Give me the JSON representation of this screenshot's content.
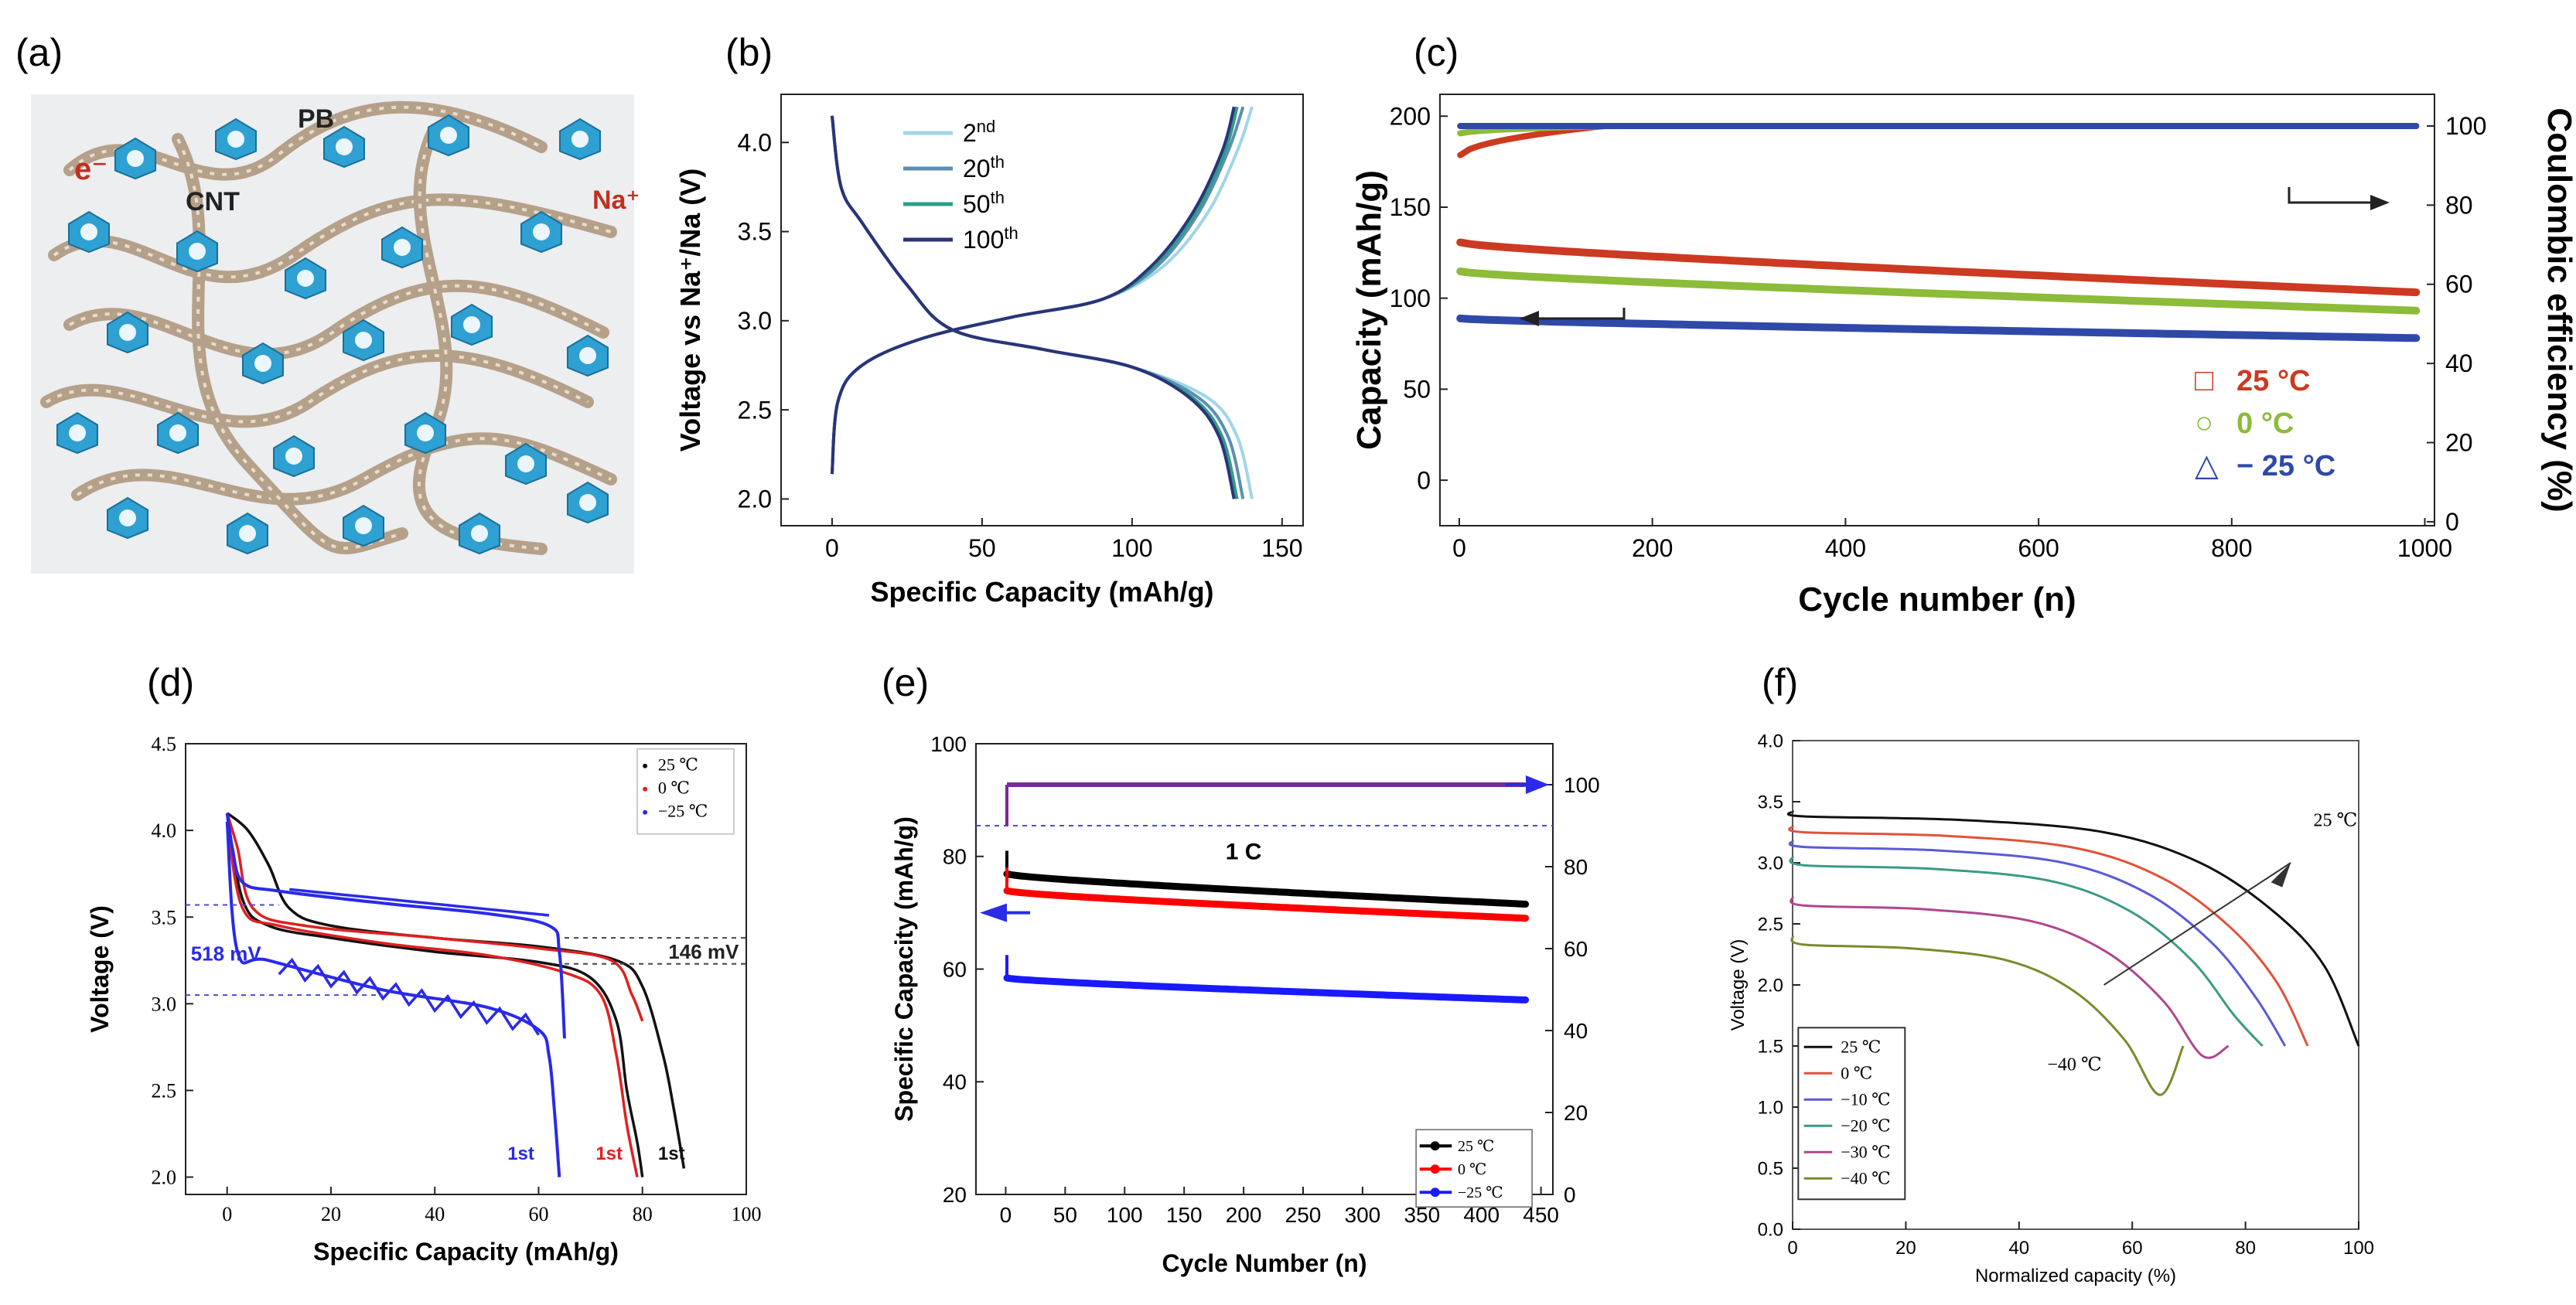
{
  "panels": [
    {
      "label": "(a)",
      "schematic": {
        "labels": {
          "pb": "PB",
          "cnt": "CNT",
          "electron": "e⁻",
          "sodium": "Na⁺"
        }
      }
    },
    {
      "label": "(b)"
    },
    {
      "label": "(c)"
    },
    {
      "label": "(d)"
    },
    {
      "label": "(e)"
    },
    {
      "label": "(f)"
    }
  ],
  "colors": {
    "cube": "#2fa0d2",
    "cnt": "#b5a08a",
    "c25": "#cc3a22",
    "c0": "#8dbb3a",
    "cm25": "#2f49a8"
  },
  "chart_data": [
    {
      "panel": "b",
      "type": "line",
      "xlabel": "Specific Capacity (mAh/g)",
      "ylabel": "Voltage vs Na⁺/Na (V)",
      "xlim": [
        -17,
        157
      ],
      "ylim": [
        1.85,
        4.27
      ],
      "xticks": [
        0,
        50,
        100,
        150
      ],
      "yticks": [
        2.0,
        2.5,
        3.0,
        3.5,
        4.0
      ],
      "series": [
        {
          "name": "2nd",
          "sup": "nd",
          "base": "2",
          "color": "#9fd6e8",
          "xmax": 140,
          "charge": [
            [
              0,
              2.14
            ],
            [
              2,
              2.55
            ],
            [
              10,
              2.75
            ],
            [
              30,
              2.9
            ],
            [
              60,
              3.02
            ],
            [
              90,
              3.12
            ],
            [
              110,
              3.3
            ],
            [
              125,
              3.6
            ],
            [
              135,
              3.95
            ],
            [
              140,
              4.2
            ]
          ],
          "discharge": [
            [
              0,
              4.15
            ],
            [
              3,
              3.75
            ],
            [
              10,
              3.55
            ],
            [
              25,
              3.2
            ],
            [
              40,
              2.95
            ],
            [
              70,
              2.84
            ],
            [
              100,
              2.74
            ],
            [
              125,
              2.57
            ],
            [
              135,
              2.35
            ],
            [
              140,
              2.0
            ]
          ]
        },
        {
          "name": "20th",
          "sup": "th",
          "base": "20",
          "color": "#5b8fb3",
          "xmax": 137,
          "charge": [
            [
              0,
              2.14
            ],
            [
              2,
              2.55
            ],
            [
              10,
              2.75
            ],
            [
              30,
              2.9
            ],
            [
              60,
              3.02
            ],
            [
              90,
              3.12
            ],
            [
              108,
              3.3
            ],
            [
              122,
              3.6
            ],
            [
              132,
              3.95
            ],
            [
              137,
              4.2
            ]
          ],
          "discharge": [
            [
              0,
              4.15
            ],
            [
              3,
              3.75
            ],
            [
              10,
              3.55
            ],
            [
              25,
              3.2
            ],
            [
              40,
              2.95
            ],
            [
              70,
              2.84
            ],
            [
              100,
              2.74
            ],
            [
              122,
              2.57
            ],
            [
              132,
              2.35
            ],
            [
              137,
              2.0
            ]
          ]
        },
        {
          "name": "50th",
          "sup": "th",
          "base": "50",
          "color": "#2e9c8a",
          "xmax": 135,
          "charge": [
            [
              0,
              2.14
            ],
            [
              2,
              2.55
            ],
            [
              10,
              2.75
            ],
            [
              30,
              2.9
            ],
            [
              60,
              3.02
            ],
            [
              90,
              3.12
            ],
            [
              107,
              3.3
            ],
            [
              121,
              3.6
            ],
            [
              131,
              3.95
            ],
            [
              135,
              4.2
            ]
          ],
          "discharge": [
            [
              0,
              4.15
            ],
            [
              3,
              3.75
            ],
            [
              10,
              3.55
            ],
            [
              25,
              3.2
            ],
            [
              40,
              2.95
            ],
            [
              70,
              2.84
            ],
            [
              100,
              2.74
            ],
            [
              120,
              2.57
            ],
            [
              130,
              2.35
            ],
            [
              135,
              2.0
            ]
          ]
        },
        {
          "name": "100th",
          "sup": "th",
          "base": "100",
          "color": "#2c3378",
          "xmax": 134,
          "charge": [
            [
              0,
              2.14
            ],
            [
              2,
              2.55
            ],
            [
              10,
              2.75
            ],
            [
              30,
              2.9
            ],
            [
              60,
              3.02
            ],
            [
              90,
              3.12
            ],
            [
              106,
              3.3
            ],
            [
              120,
              3.6
            ],
            [
              130,
              3.95
            ],
            [
              134,
              4.2
            ]
          ],
          "discharge": [
            [
              0,
              4.15
            ],
            [
              3,
              3.75
            ],
            [
              10,
              3.55
            ],
            [
              25,
              3.2
            ],
            [
              40,
              2.95
            ],
            [
              70,
              2.84
            ],
            [
              100,
              2.74
            ],
            [
              119,
              2.57
            ],
            [
              129,
              2.35
            ],
            [
              134,
              2.0
            ]
          ]
        }
      ]
    },
    {
      "panel": "c",
      "type": "scatter",
      "xlabel": "Cycle number (n)",
      "ylabel": "Capacity (mAh/g)",
      "y2label": "Coulombic efficiency (%)",
      "xlim": [
        -20,
        1010
      ],
      "ylim": [
        -25,
        212
      ],
      "y2lim": [
        -1,
        108
      ],
      "xticks": [
        0,
        200,
        400,
        600,
        800,
        1000
      ],
      "yticks": [
        0,
        50,
        100,
        150,
        200
      ],
      "y2ticks": [
        0,
        20,
        40,
        60,
        80,
        100
      ],
      "legend": [
        {
          "symbol": "□",
          "label": "25 °C",
          "color": "#cc3a22"
        },
        {
          "symbol": "○",
          "label": "0 °C",
          "color": "#8dbb3a"
        },
        {
          "symbol": "△",
          "label": "− 25 °C",
          "color": "#2f49a8"
        }
      ],
      "capacity": [
        {
          "name": "25 °C",
          "color": "#cc3a22",
          "start": 131,
          "end": 103
        },
        {
          "name": "0 °C",
          "color": "#8dbb3a",
          "start": 115,
          "end": 93
        },
        {
          "name": "-25 °C",
          "color": "#2f49a8",
          "start": 89,
          "end": 78
        }
      ],
      "efficiency": [
        {
          "name": "25 °C",
          "color": "#cc3a22",
          "start": 92,
          "end": 100
        },
        {
          "name": "0 °C",
          "color": "#8dbb3a",
          "start": 98,
          "end": 100
        },
        {
          "name": "-25 °C",
          "color": "#2f49a8",
          "start": 100,
          "end": 100
        }
      ]
    },
    {
      "panel": "d",
      "type": "line",
      "xlabel": "Specific Capacity (mAh/g)",
      "ylabel": "Voltage (V)",
      "xlim": [
        -8,
        100
      ],
      "ylim": [
        1.9,
        4.5
      ],
      "xticks": [
        0,
        20,
        40,
        60,
        80,
        100
      ],
      "yticks": [
        2.0,
        2.5,
        3.0,
        3.5,
        4.0,
        4.5
      ],
      "legend": [
        {
          "label": "25 ℃",
          "color": "#111111"
        },
        {
          "label": "0 ℃",
          "color": "#e02020"
        },
        {
          "label": "−25 ℃",
          "color": "#2a2ae8"
        }
      ],
      "annotations": {
        "left_gap": "518 mV",
        "right_gap": "146 mV",
        "first": "1st"
      },
      "series": [
        {
          "name": "25 ℃",
          "color": "#111111",
          "points": [
            [
              0,
              4.1
            ],
            [
              4,
              4.0
            ],
            [
              8,
              3.8
            ],
            [
              12,
              3.55
            ],
            [
              20,
              3.45
            ],
            [
              40,
              3.38
            ],
            [
              60,
              3.33
            ],
            [
              75,
              3.25
            ],
            [
              80,
              3.1
            ],
            [
              84,
              2.7
            ],
            [
              86,
              2.4
            ],
            [
              88,
              2.05
            ]
          ]
        },
        {
          "name": "25 ℃ discharge",
          "color": "#111111",
          "points": [
            [
              0,
              4.1
            ],
            [
              3,
              3.6
            ],
            [
              8,
              3.45
            ],
            [
              20,
              3.38
            ],
            [
              40,
              3.3
            ],
            [
              60,
              3.24
            ],
            [
              70,
              3.15
            ],
            [
              75,
              2.9
            ],
            [
              77,
              2.5
            ],
            [
              79,
              2.2
            ],
            [
              80,
              2.0
            ]
          ]
        },
        {
          "name": "0 ℃",
          "color": "#e02020",
          "points": [
            [
              0,
              4.1
            ],
            [
              2,
              3.9
            ],
            [
              5,
              3.55
            ],
            [
              15,
              3.45
            ],
            [
              40,
              3.38
            ],
            [
              60,
              3.32
            ],
            [
              74,
              3.25
            ],
            [
              78,
              3.05
            ],
            [
              80,
              2.9
            ]
          ]
        },
        {
          "name": "0 ℃ discharge",
          "color": "#e02020",
          "points": [
            [
              0,
              4.05
            ],
            [
              3,
              3.55
            ],
            [
              10,
              3.45
            ],
            [
              30,
              3.35
            ],
            [
              50,
              3.28
            ],
            [
              65,
              3.18
            ],
            [
              72,
              3.05
            ],
            [
              75,
              2.7
            ],
            [
              77,
              2.3
            ],
            [
              79,
              2.0
            ]
          ]
        },
        {
          "name": "−25 ℃",
          "color": "#2a2ae8",
          "points": [
            [
              0,
              4.1
            ],
            [
              1,
              3.9
            ],
            [
              3,
              3.7
            ],
            [
              10,
              3.65
            ],
            [
              30,
              3.58
            ],
            [
              50,
              3.52
            ],
            [
              62,
              3.45
            ],
            [
              64,
              3.3
            ],
            [
              65,
              2.8
            ]
          ]
        },
        {
          "name": "−25 ℃ discharge",
          "color": "#2a2ae8",
          "points": [
            [
              0,
              4.05
            ],
            [
              2,
              3.3
            ],
            [
              8,
              3.25
            ],
            [
              30,
              3.08
            ],
            [
              50,
              2.98
            ],
            [
              60,
              2.85
            ],
            [
              62,
              2.7
            ],
            [
              63,
              2.4
            ],
            [
              64,
              2.0
            ]
          ]
        }
      ]
    },
    {
      "panel": "e",
      "type": "scatter",
      "xlabel": "Cycle Number (n)",
      "ylabel": "Specific Capacity (mAh/g)",
      "annotation": "1 C",
      "xlim": [
        -25,
        460
      ],
      "ylim": [
        20,
        100
      ],
      "y2lim": [
        0,
        110
      ],
      "xticks": [
        0,
        50,
        100,
        150,
        200,
        250,
        300,
        350,
        400,
        450
      ],
      "yticks": [
        20,
        40,
        60,
        80,
        100
      ],
      "y2ticks": [
        0,
        20,
        40,
        60,
        80,
        100
      ],
      "legend": [
        {
          "label": "25 ℃",
          "color": "#000000"
        },
        {
          "label": "0 ℃",
          "color": "#ff0000"
        },
        {
          "label": "−25 ℃",
          "color": "#1a1aff"
        }
      ],
      "capacity": [
        {
          "name": "25 ℃",
          "color": "#000000",
          "start": 77,
          "end": 71.5
        },
        {
          "name": "0 ℃",
          "color": "#ff0000",
          "start": 74,
          "end": 69
        },
        {
          "name": "−25 ℃",
          "color": "#1a1aff",
          "start": 58.5,
          "end": 54.5
        }
      ],
      "efficiency": [
        {
          "name": "all",
          "color": "#7a2a9a",
          "start": 100,
          "end": 100
        }
      ]
    },
    {
      "panel": "f",
      "type": "line",
      "xlabel": "Normalized capacity (%)",
      "ylabel": "Voltage (V)",
      "xlim": [
        0,
        100
      ],
      "ylim": [
        0,
        4
      ],
      "xticks": [
        0,
        20,
        40,
        60,
        80,
        100
      ],
      "yticks": [
        0.0,
        0.5,
        1.0,
        1.5,
        2.0,
        2.5,
        3.0,
        3.5,
        4.0
      ],
      "annotations": {
        "hot": "25 ℃",
        "cold": "−40 ℃"
      },
      "series": [
        {
          "name": "25 ℃",
          "color": "#111111",
          "v0": 3.42,
          "vp": 3.35,
          "end": 100
        },
        {
          "name": "0 ℃",
          "color": "#e0523a",
          "v0": 3.3,
          "vp": 3.22,
          "end": 91
        },
        {
          "name": "−10 ℃",
          "color": "#5a5ad8",
          "v0": 3.18,
          "vp": 3.1,
          "end": 87
        },
        {
          "name": "−20 ℃",
          "color": "#3a9b86",
          "v0": 3.05,
          "vp": 2.95,
          "end": 83
        },
        {
          "name": "−30 ℃",
          "color": "#b0468e",
          "v0": 2.72,
          "vp": 2.62,
          "end": 77
        },
        {
          "name": "−40 ℃",
          "color": "#7a8a2a",
          "v0": 2.4,
          "vp": 2.3,
          "end": 69
        }
      ]
    }
  ]
}
